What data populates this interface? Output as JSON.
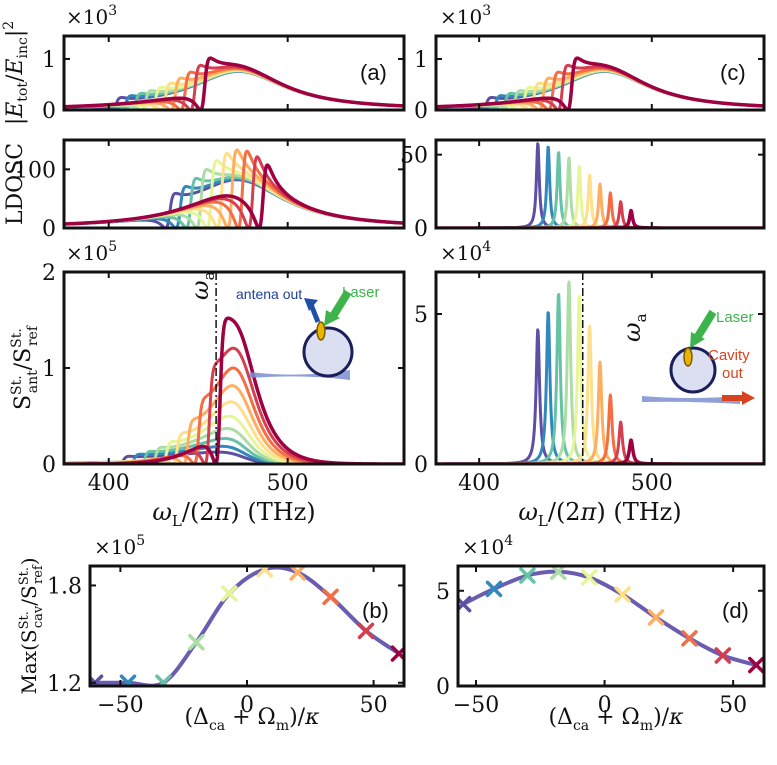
{
  "chart_data": [
    {
      "id": "a1",
      "type": "line",
      "ylabel": "|Etot/Einc|^2",
      "multiplier": "×10^3",
      "panel_label": "(a)",
      "xlim": [
        375,
        565
      ],
      "ylim": [
        0,
        1.45
      ],
      "yticks": [
        0,
        1
      ],
      "xticks": [
        400,
        500
      ],
      "show_xticklabels": false,
      "curves": {
        "kind": "fano_field",
        "n": 10,
        "peak": 1.35,
        "w0": 473,
        "g": 32,
        "dip_start": 404,
        "dip_step": 5.5,
        "dip_width": 2.5
      }
    },
    {
      "id": "a2",
      "type": "line",
      "ylabel": "LDOSC",
      "panel_label": "",
      "xlim": [
        375,
        565
      ],
      "ylim": [
        0,
        150
      ],
      "yticks": [
        0,
        100
      ],
      "xticks": [
        400,
        500
      ],
      "show_xticklabels": false,
      "curves": {
        "kind": "fano_field",
        "n": 10,
        "peak": 140,
        "w0": 473,
        "g": 32,
        "dip_start": 434,
        "dip_step": 5.8,
        "dip_width": 2.5
      }
    },
    {
      "id": "a3",
      "type": "line",
      "ylabel": "S_ant^St. / S_ref^St.",
      "multiplier": "×10^5",
      "xlabel": "ωL/(2π) (THz)",
      "xlim": [
        375,
        565
      ],
      "ylim": [
        0,
        2
      ],
      "yticks": [
        0,
        1,
        2
      ],
      "xticks": [
        400,
        500
      ],
      "show_xticklabels": true,
      "vline": 460,
      "annotations": {
        "omega": "ωa",
        "out": "antena out",
        "laser": "Laser"
      },
      "curves": {
        "kind": "spectrum",
        "n": 10,
        "peak": 1.35,
        "w0": 473,
        "g": 16,
        "dip_start": 408,
        "dip_step": 6,
        "dip_width": 2.5
      }
    },
    {
      "id": "c1",
      "type": "line",
      "multiplier": "×10^3",
      "panel_label": "(c)",
      "xlim": [
        375,
        565
      ],
      "ylim": [
        0,
        1.45
      ],
      "yticks": [
        0,
        1
      ],
      "xticks": [
        400,
        500
      ],
      "show_xticklabels": false,
      "curves": {
        "kind": "fano_field",
        "n": 10,
        "peak": 1.35,
        "w0": 473,
        "g": 32,
        "dip_start": 404,
        "dip_step": 5.5,
        "dip_width": 2.5
      }
    },
    {
      "id": "c2",
      "type": "line",
      "xlim": [
        375,
        565
      ],
      "ylim": [
        0,
        60
      ],
      "yticks": [
        0,
        50
      ],
      "xticks": [
        400,
        500
      ],
      "show_xticklabels": false,
      "curves": {
        "kind": "cavity_peaks",
        "n": 10,
        "centers": [
          434,
          440,
          446,
          452,
          458,
          464,
          470,
          476,
          482,
          488
        ],
        "heights": [
          58,
          56,
          52,
          48,
          42,
          36,
          30,
          24,
          18,
          12
        ],
        "width": 1.0
      }
    },
    {
      "id": "c3",
      "type": "line",
      "multiplier": "×10^4",
      "xlabel": "ωL/(2π) (THz)",
      "xlim": [
        375,
        565
      ],
      "ylim": [
        0,
        6.4
      ],
      "yticks": [
        0,
        5
      ],
      "xticks": [
        400,
        500
      ],
      "show_xticklabels": true,
      "vline": 460,
      "annotations": {
        "omega": "ωa",
        "laser": "Laser",
        "out1": "Cavity",
        "out2": "out"
      },
      "curves": {
        "kind": "cavity_peaks",
        "n": 10,
        "centers": [
          434,
          440,
          446,
          452,
          458,
          464,
          470,
          476,
          482,
          488
        ],
        "heights": [
          4.5,
          5.1,
          5.7,
          6.1,
          5.6,
          4.6,
          3.4,
          2.3,
          1.4,
          0.8
        ],
        "width": 1.2
      }
    },
    {
      "id": "b",
      "type": "line",
      "ylabel": "Max(S_cav^St. / S_ref^St.)",
      "multiplier": "×10^5",
      "panel_label": "(b)",
      "xlabel": "(Δca + Ωm)/κ",
      "xlim": [
        -62,
        62
      ],
      "ylim": [
        1.18,
        1.92
      ],
      "yticks": [
        1.2,
        1.8
      ],
      "ytick_labels": [
        "1.2",
        "1.8"
      ],
      "xticks": [
        -50,
        0,
        50
      ],
      "x": [
        -60,
        -47,
        -33,
        -20,
        -7,
        7,
        20,
        33,
        47,
        60
      ],
      "y": [
        1.2,
        1.2,
        1.2,
        1.45,
        1.75,
        1.9,
        1.88,
        1.73,
        1.52,
        1.38
      ]
    },
    {
      "id": "d",
      "type": "line",
      "multiplier": "×10^4",
      "panel_label": "(d)",
      "xlabel": "(Δca + Ωm)/κ",
      "xlim": [
        -57,
        62
      ],
      "ylim": [
        0,
        6.3
      ],
      "yticks": [
        0,
        5
      ],
      "ytick_labels": [
        "0",
        "5"
      ],
      "xticks": [
        -50,
        0,
        50
      ],
      "x": [
        -55,
        -43,
        -30,
        -18,
        -6,
        7,
        20,
        33,
        46,
        59
      ],
      "y": [
        4.3,
        5.1,
        5.8,
        6.0,
        5.7,
        4.8,
        3.6,
        2.5,
        1.6,
        1.1
      ]
    }
  ],
  "palette": [
    "#5e4fa2",
    "#3288bd",
    "#66c2a5",
    "#abdda4",
    "#e6f598",
    "#fee08b",
    "#fdae61",
    "#f46d43",
    "#d53e4f",
    "#9e0142"
  ],
  "link_color": "#6a5cb0"
}
